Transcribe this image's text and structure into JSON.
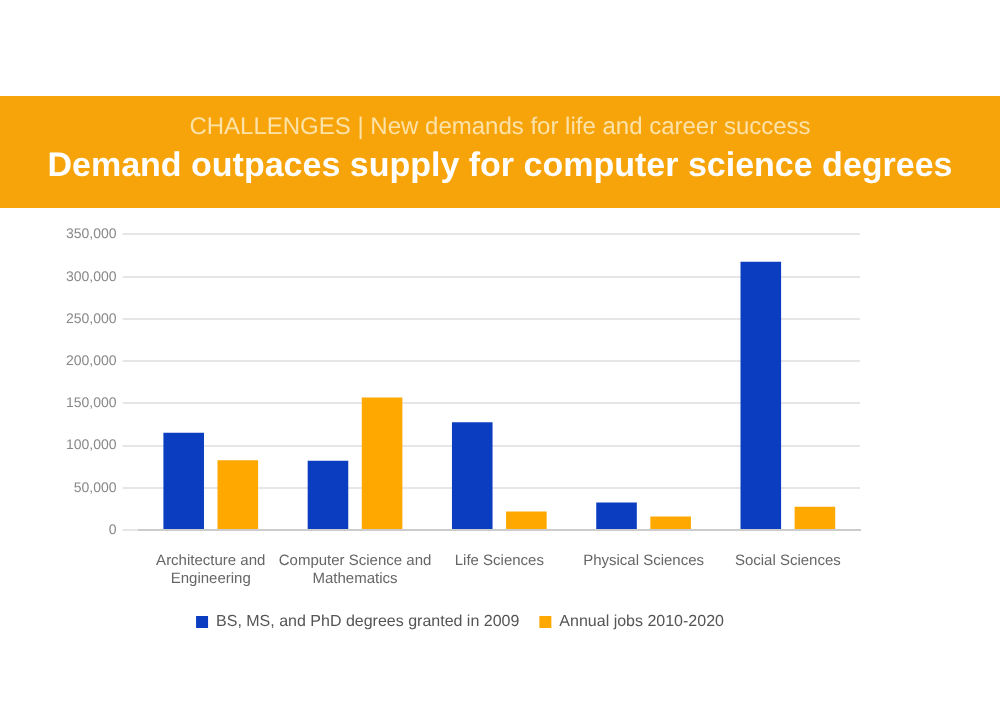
{
  "chart_data": {
    "type": "bar",
    "subtitle": "CHALLENGES | New demands for life and career success",
    "title": "Demand outpaces supply for computer science degrees",
    "categories": [
      "Architecture and Engineering",
      "Computer Science and Mathematics",
      "Life Sciences",
      "Physical Sciences",
      "Social Sciences"
    ],
    "series": [
      {
        "name": "BS, MS, and PhD degrees granted in 2009",
        "color": "#0a3dbf",
        "values": [
          115000,
          82000,
          127500,
          32500,
          317500
        ]
      },
      {
        "name": "Annual jobs 2010-2020",
        "color": "#ffa800",
        "values": [
          82500,
          157000,
          22000,
          16000,
          27500
        ]
      }
    ],
    "ylim": [
      0,
      350000
    ],
    "yticks": [
      {
        "value": 0,
        "label": "0"
      },
      {
        "value": 50000,
        "label": "50,000"
      },
      {
        "value": 100000,
        "label": "100,000"
      },
      {
        "value": 150000,
        "label": "150,000"
      },
      {
        "value": 200000,
        "label": "200,000"
      },
      {
        "value": 250000,
        "label": "250,000"
      },
      {
        "value": 300000,
        "label": "300,000"
      },
      {
        "value": 350000,
        "label": "350,000"
      }
    ],
    "grid": "y",
    "legend": "bottom"
  }
}
